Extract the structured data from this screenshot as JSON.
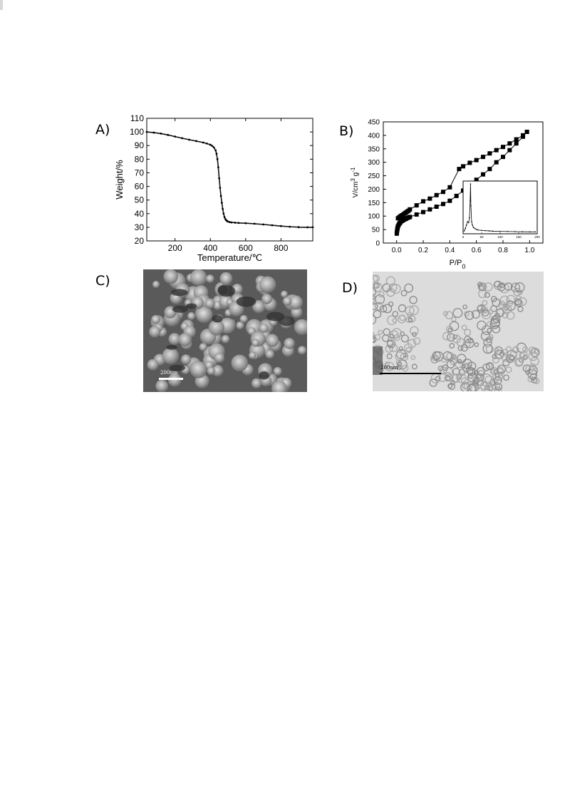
{
  "panels": {
    "a": {
      "letter": "A)"
    },
    "b": {
      "letter": "B)"
    },
    "c": {
      "letter": "C)",
      "scalebar": "200nm"
    },
    "d": {
      "letter": "D)",
      "scalebar": "200nm"
    }
  },
  "chart_data": [
    {
      "id": "A",
      "type": "scatter",
      "title": "",
      "xlabel": "Temperature/℃",
      "ylabel": "Weight/%",
      "xlim": [
        40,
        980
      ],
      "ylim": [
        20,
        110
      ],
      "xticks": [
        200,
        400,
        600,
        800
      ],
      "yticks": [
        20,
        30,
        40,
        50,
        60,
        70,
        80,
        90,
        100,
        110
      ],
      "grid": false,
      "series": [
        {
          "x": [
            40,
            80,
            120,
            160,
            200,
            240,
            280,
            320,
            360,
            380,
            400,
            410,
            420,
            430,
            435,
            440,
            445,
            450,
            455,
            460,
            465,
            470,
            475,
            480,
            485,
            490,
            495,
            500,
            510,
            520,
            540,
            560,
            600,
            650,
            700,
            750,
            800,
            850,
            900,
            950,
            980
          ],
          "y": [
            100,
            99.5,
            98.8,
            97.8,
            96.6,
            95.4,
            94.3,
            93.3,
            92.2,
            91.5,
            90.6,
            89.8,
            88.6,
            86.5,
            84,
            80,
            74,
            66,
            59,
            53,
            48,
            43.5,
            40,
            37.5,
            36,
            35.2,
            34.6,
            34.2,
            33.8,
            33.6,
            33.4,
            33.2,
            33,
            32.6,
            32.1,
            31.5,
            30.9,
            30.4,
            30.1,
            30,
            30
          ]
        }
      ]
    },
    {
      "id": "B",
      "type": "scatter",
      "title": "",
      "xlabel": "P/P",
      "xlabel_sub": "0",
      "ylabel": "V/cm",
      "ylabel_sup1": "3",
      "ylabel_mid": " g",
      "ylabel_sup2": "-1",
      "xlim": [
        -0.1,
        1.1
      ],
      "ylim": [
        0,
        450
      ],
      "xticks": [
        0.0,
        0.2,
        0.4,
        0.6,
        0.8,
        1.0
      ],
      "xtick_labels": [
        "0.0",
        "0.2",
        "0.4",
        "0.6",
        "0.8",
        "1.0"
      ],
      "yticks": [
        0,
        50,
        100,
        150,
        200,
        250,
        300,
        350,
        400,
        450
      ],
      "grid": false,
      "series": [
        {
          "x": [
            0.001,
            0.002,
            0.004,
            0.006,
            0.008,
            0.01,
            0.015,
            0.02,
            0.025,
            0.03,
            0.04,
            0.05,
            0.06,
            0.07,
            0.08,
            0.09,
            0.1,
            0.15,
            0.2,
            0.25,
            0.3,
            0.35,
            0.4,
            0.45,
            0.5,
            0.55,
            0.6,
            0.65,
            0.7,
            0.75,
            0.8,
            0.85,
            0.9,
            0.95,
            0.98
          ],
          "y": [
            35,
            40,
            47,
            53,
            58,
            62,
            67,
            72,
            75,
            78,
            82,
            85,
            88,
            90,
            93,
            95,
            97,
            106,
            115,
            125,
            135,
            145,
            157,
            175,
            195,
            215,
            235,
            255,
            275,
            300,
            320,
            345,
            370,
            395,
            413
          ]
        },
        {
          "x": [
            0.98,
            0.95,
            0.9,
            0.85,
            0.8,
            0.75,
            0.7,
            0.65,
            0.6,
            0.55,
            0.5,
            0.47,
            0.4,
            0.35,
            0.3,
            0.25,
            0.2,
            0.15,
            0.1,
            0.09,
            0.08,
            0.07,
            0.06,
            0.05,
            0.04,
            0.03,
            0.02,
            0.01
          ],
          "y": [
            413,
            400,
            385,
            370,
            357,
            345,
            333,
            320,
            308,
            298,
            285,
            275,
            207,
            190,
            178,
            165,
            155,
            140,
            125,
            120,
            117,
            113,
            110,
            106,
            103,
            100,
            96,
            92
          ]
        }
      ],
      "inset": {
        "xlim": [
          0,
          200
        ],
        "xticks": [
          0,
          50,
          100,
          150,
          200
        ],
        "xtick_labels": [
          "0",
          "50",
          "100",
          "150",
          "200"
        ],
        "peak": {
          "x": 20,
          "y": 1.0
        },
        "x": [
          3,
          6,
          9,
          12,
          15,
          17,
          19,
          20,
          21,
          23,
          25,
          28,
          32,
          36,
          40,
          50,
          60,
          70,
          80,
          100,
          120,
          140,
          160,
          180,
          195
        ],
        "y": [
          0.03,
          0.08,
          0.15,
          0.22,
          0.2,
          0.3,
          0.65,
          1.0,
          0.55,
          0.22,
          0.15,
          0.1,
          0.08,
          0.06,
          0.05,
          0.04,
          0.035,
          0.03,
          0.025,
          0.02,
          0.018,
          0.015,
          0.012,
          0.01,
          0.01
        ]
      }
    }
  ]
}
